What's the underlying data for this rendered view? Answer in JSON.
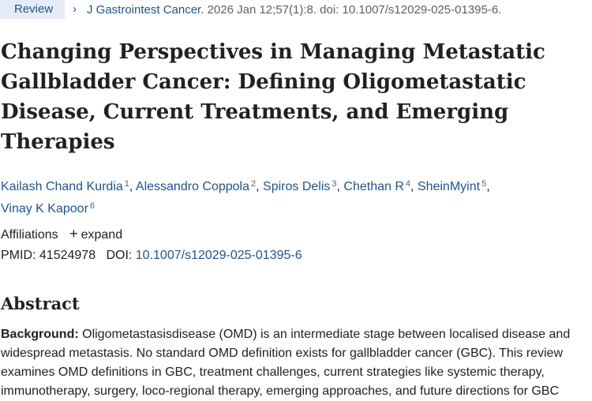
{
  "header": {
    "badge": "Review",
    "chevron": "›",
    "journal": "J Gastrointest Cancer.",
    "citation": " 2026 Jan 12;57(1):8. doi: 10.1007/s12029-025-01395-6."
  },
  "title": "Changing Perspectives in Managing Metastatic Gallbladder Cancer: Defining Oligometastatic Disease, Current Treatments, and Emerging Therapies",
  "authors": [
    {
      "name": "Kailash Chand Kurdia",
      "sup": "1",
      "sep": ", "
    },
    {
      "name": "Alessandro Coppola",
      "sup": "2",
      "sep": ", "
    },
    {
      "name": "Spiros Delis",
      "sup": "3",
      "sep": ", "
    },
    {
      "name": "Chethan R",
      "sup": "4",
      "sep": ", "
    },
    {
      "name": "SheinMyint",
      "sup": "5",
      "sep": ","
    },
    {
      "name": "Vinay K Kapoor",
      "sup": "6",
      "sep": ""
    }
  ],
  "affiliations": {
    "label": "Affiliations",
    "expand_label": "expand"
  },
  "ids": {
    "pmid_label": "PMID:",
    "pmid": "41524978",
    "doi_label": "DOI:",
    "doi": "10.1007/s12029-025-01395-6"
  },
  "abstract": {
    "heading": "Abstract",
    "background_label": "Background:",
    "text": " Oligometastasisdisease (OMD) is an intermediate stage between localised disease and widespread metastasis. No standard OMD definition exists for gallbladder cancer (GBC). This review examines OMD definitions in GBC, treatment challenges, current strategies like systemic therapy, immunotherapy, surgery, loco-regional therapy, emerging approaches, and future directions for GBC"
  },
  "colors": {
    "link": "#20558a",
    "badge_bg": "#e5ecf7",
    "text": "#212121"
  }
}
